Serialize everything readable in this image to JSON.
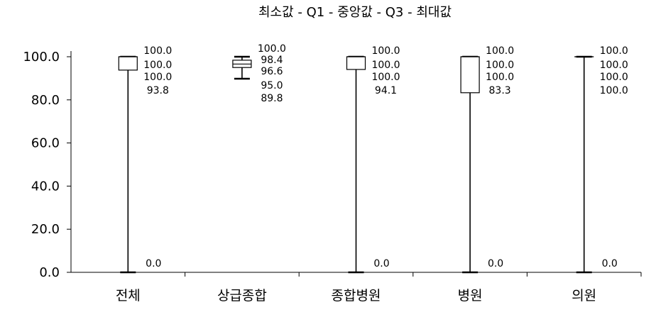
{
  "chart_data": {
    "type": "boxplot",
    "title": "최소값 - Q1 - 중앙값 - Q3 - 최대값",
    "xlabel": "",
    "ylabel": "",
    "ylim": [
      0,
      100
    ],
    "yticks": [
      "0.0",
      "20.0",
      "40.0",
      "60.0",
      "80.0",
      "100.0"
    ],
    "grid": false,
    "categories": [
      "전체",
      "상급종합",
      "종합병원",
      "병원",
      "의원"
    ],
    "boxes": [
      {
        "min": 0.0,
        "q1": 93.8,
        "median": 100.0,
        "q3": 100.0,
        "max": 100.0,
        "label_max": "100.0",
        "label_q3": "100.0",
        "label_median": "100.0",
        "label_q1": "93.8",
        "label_min": "0.0"
      },
      {
        "min": 89.8,
        "q1": 95.0,
        "median": 96.6,
        "q3": 98.4,
        "max": 100.0,
        "label_max": "100.0",
        "label_q3": "98.4",
        "label_median": "96.6",
        "label_q1": "95.0",
        "label_min": "89.8"
      },
      {
        "min": 0.0,
        "q1": 94.1,
        "median": 100.0,
        "q3": 100.0,
        "max": 100.0,
        "label_max": "100.0",
        "label_q3": "100.0",
        "label_median": "100.0",
        "label_q1": "94.1",
        "label_min": "0.0"
      },
      {
        "min": 0.0,
        "q1": 83.3,
        "median": 100.0,
        "q3": 100.0,
        "max": 100.0,
        "label_max": "100.0",
        "label_q3": "100.0",
        "label_median": "100.0",
        "label_q1": "83.3",
        "label_min": "0.0"
      },
      {
        "min": 0.0,
        "q1": 100.0,
        "median": 100.0,
        "q3": 100.0,
        "max": 100.0,
        "label_max": "100.0",
        "label_q3": "100.0",
        "label_median": "100.0",
        "label_q1": "100.0",
        "label_min": "0.0"
      }
    ]
  }
}
